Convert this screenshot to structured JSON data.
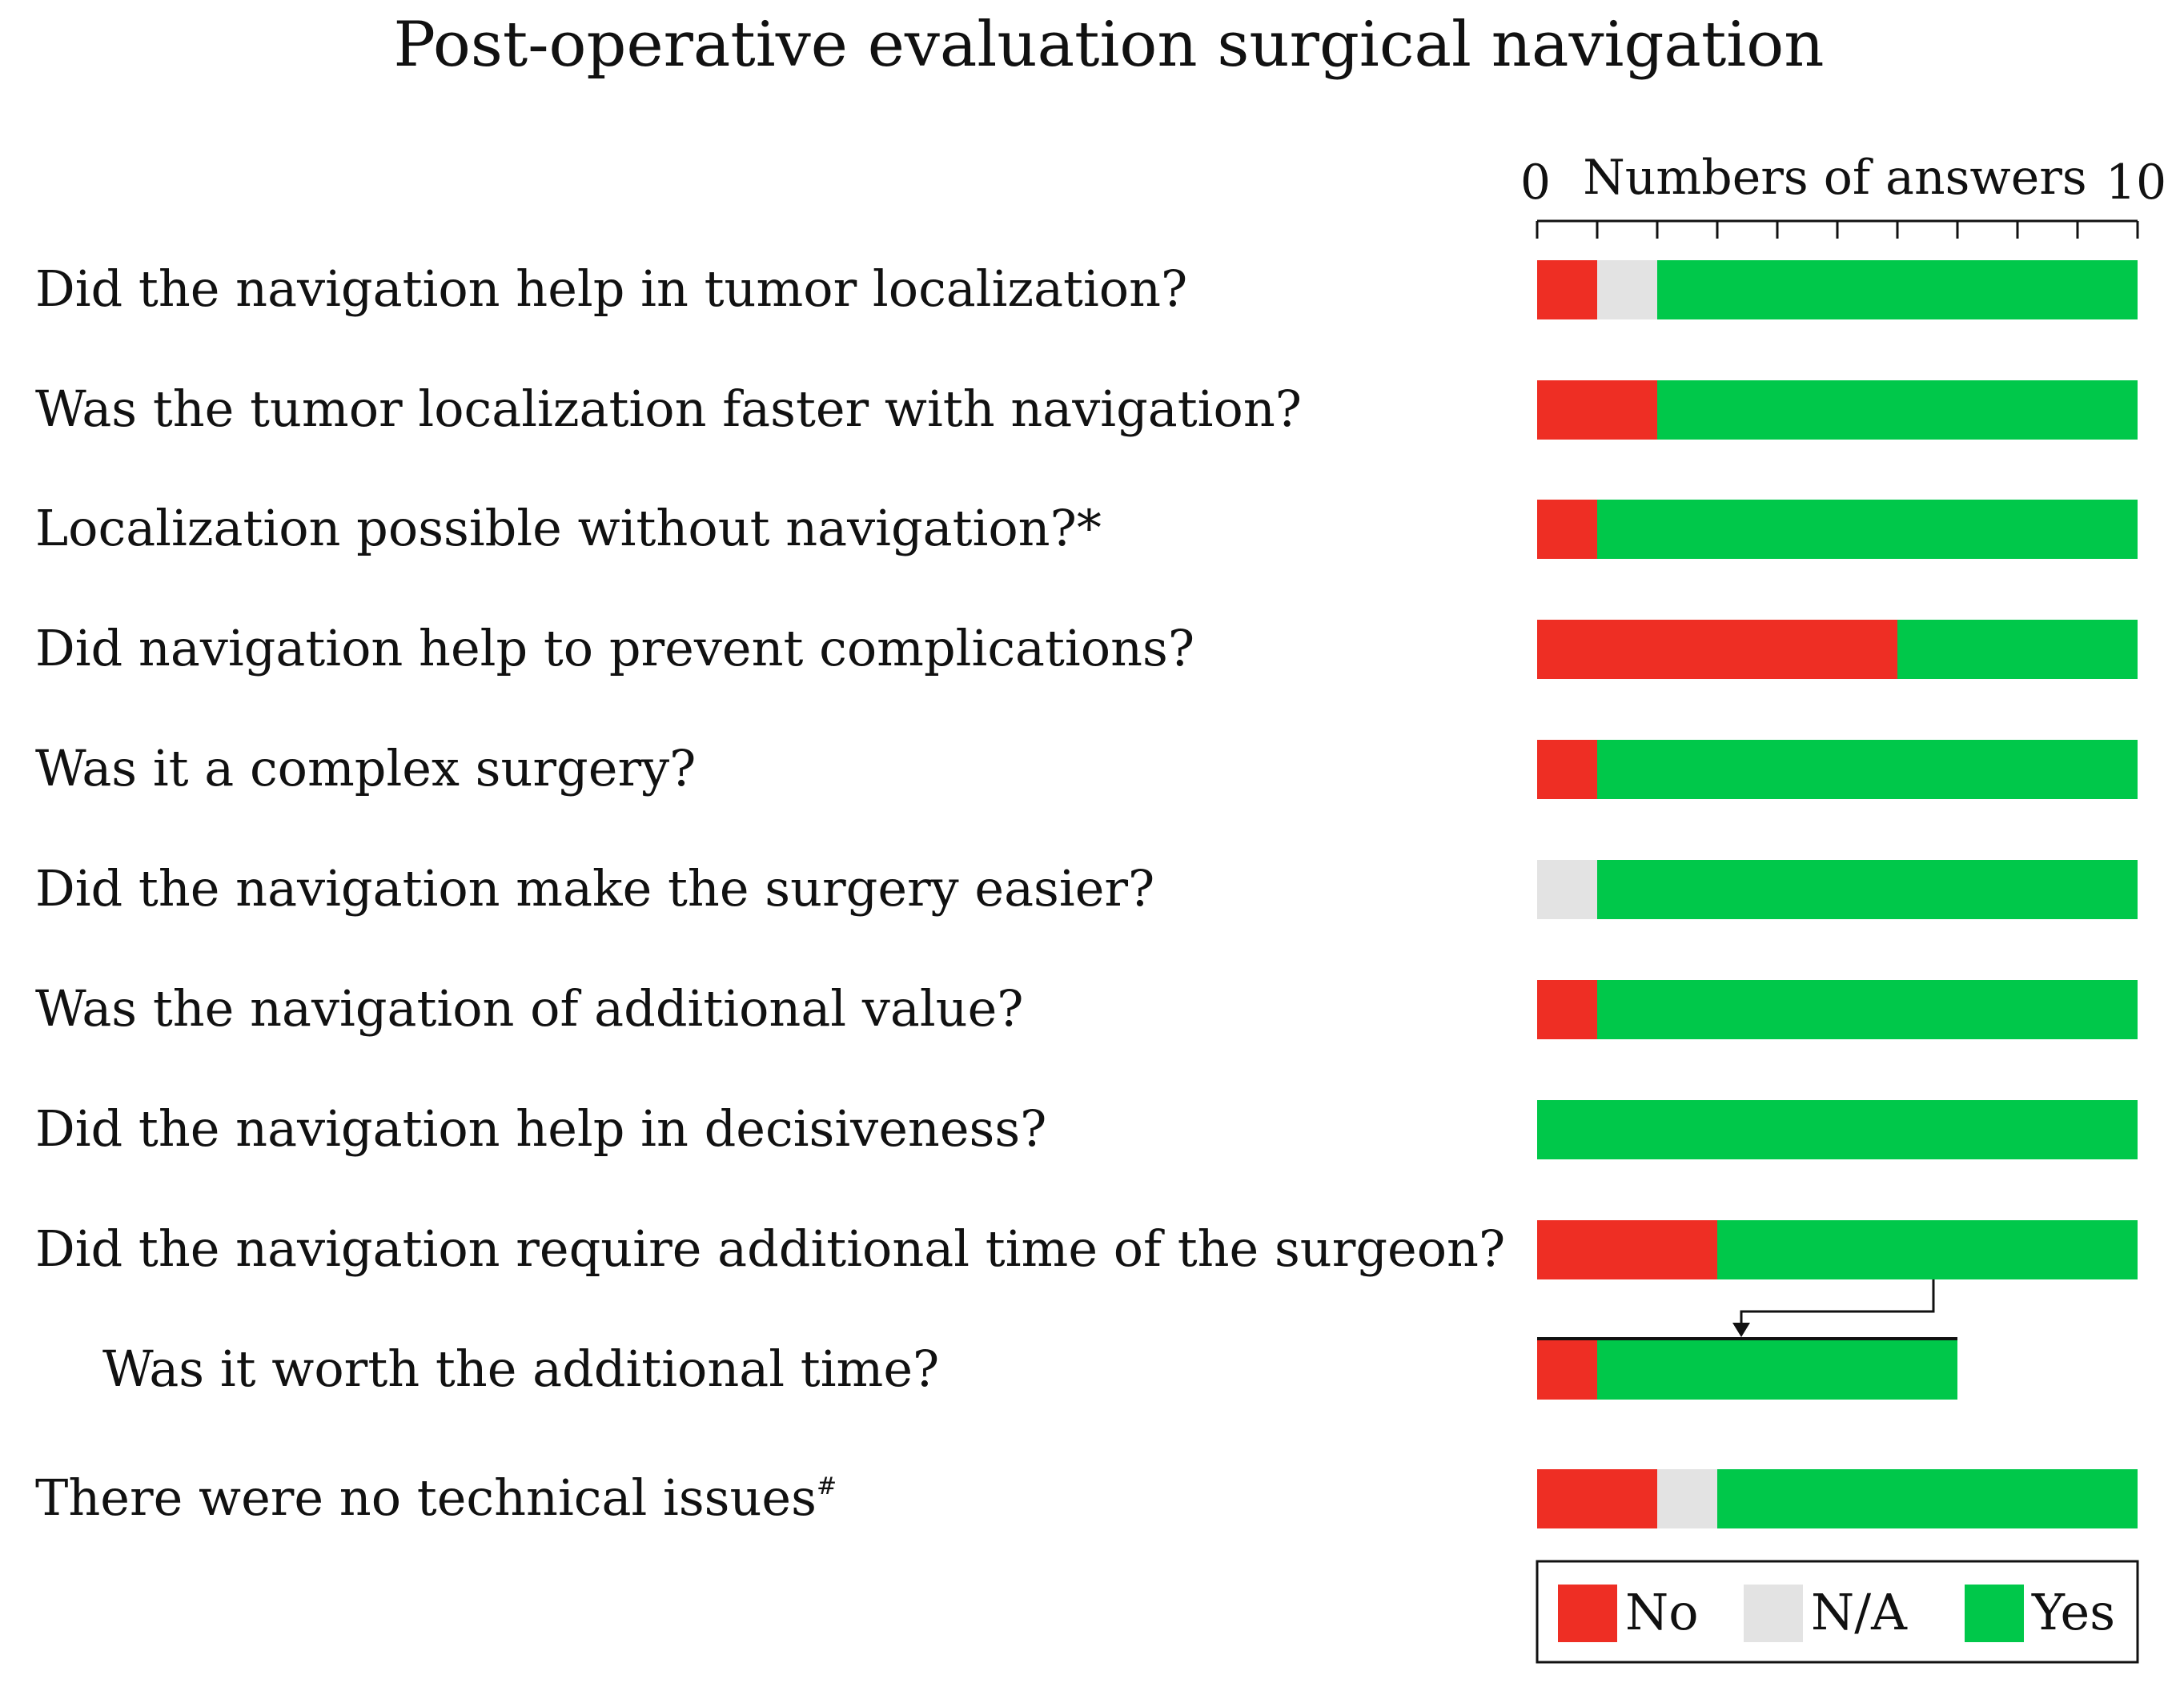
{
  "chart_data": {
    "type": "bar",
    "orientation": "horizontal",
    "stacked": true,
    "title": "Post-operative evaluation surgical navigation",
    "xlabel": "Numbers of answers",
    "xlim": [
      0,
      10
    ],
    "x_tick_labels": [
      "0",
      "10"
    ],
    "x_minor_ticks": [
      0,
      1,
      2,
      3,
      4,
      5,
      6,
      7,
      8,
      9,
      10
    ],
    "categories": [
      "Did the navigation help in tumor localization?",
      "Was the tumor localization faster with navigation?",
      "Localization possible without navigation?*",
      "Did navigation help to prevent complications?",
      "Was it a complex surgery?",
      "Did the navigation make the surgery easier?",
      "Was the navigation of additional value?",
      "Did the navigation help in decisiveness?",
      "Did the navigation require additional time of the surgeon?",
      "Was it worth the additional time?",
      "There were no technical issues"
    ],
    "footnote_marks": [
      "",
      "",
      "",
      "",
      "",
      "",
      "",
      "",
      "",
      "",
      "#"
    ],
    "sub_question_of": [
      null,
      null,
      null,
      null,
      null,
      null,
      null,
      null,
      null,
      8,
      null
    ],
    "series": [
      {
        "name": "No",
        "color": "#ee2e24",
        "values": [
          1,
          2,
          1,
          6,
          1,
          0,
          1,
          0,
          3,
          1,
          2
        ]
      },
      {
        "name": "N/A",
        "color": "#e3e3e3",
        "values": [
          1,
          0,
          0,
          0,
          0,
          1,
          0,
          0,
          0,
          0,
          1
        ]
      },
      {
        "name": "Yes",
        "color": "#00c84a",
        "values": [
          8,
          8,
          9,
          4,
          9,
          9,
          9,
          10,
          7,
          6,
          7
        ]
      }
    ],
    "legend": {
      "position": "bottom-right",
      "entries": [
        "No",
        "N/A",
        "Yes"
      ]
    }
  }
}
